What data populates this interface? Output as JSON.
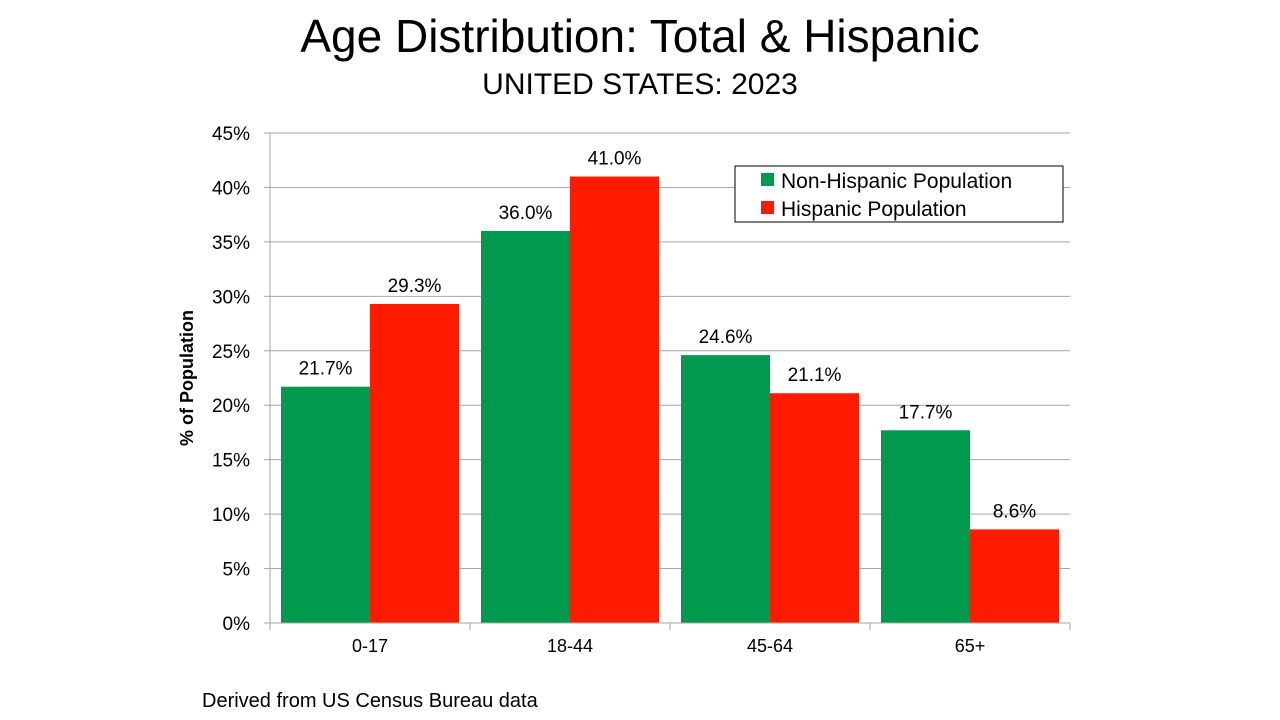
{
  "chart_data": {
    "type": "bar",
    "title": "Age Distribution: Total & Hispanic",
    "subtitle": "UNITED STATES: 2023",
    "xlabel": "",
    "ylabel": "% of Population",
    "categories": [
      "0-17",
      "18-44",
      "45-64",
      "65+"
    ],
    "series": [
      {
        "name": "Non-Hispanic Population",
        "color": "#009A4E",
        "values": [
          21.7,
          36.0,
          24.6,
          17.7
        ],
        "labels": [
          "21.7%",
          "36.0%",
          "24.6%",
          "17.7%"
        ]
      },
      {
        "name": "Hispanic Population",
        "color": "#FF1A00",
        "values": [
          29.3,
          41.0,
          21.1,
          8.6
        ],
        "labels": [
          "29.3%",
          "41.0%",
          "21.1%",
          "8.6%"
        ]
      }
    ],
    "ylim": [
      0,
      45
    ],
    "yticks": [
      0,
      5,
      10,
      15,
      20,
      25,
      30,
      35,
      40,
      45
    ],
    "ytick_labels": [
      "0%",
      "5%",
      "10%",
      "15%",
      "20%",
      "25%",
      "30%",
      "35%",
      "40%",
      "45%"
    ],
    "grid": true,
    "legend_position": "top-right"
  },
  "footer": {
    "source": "Derived from US Census Bureau data"
  },
  "colors": {
    "gridline": "#A6A6A6",
    "axis": "#A6A6A6"
  }
}
